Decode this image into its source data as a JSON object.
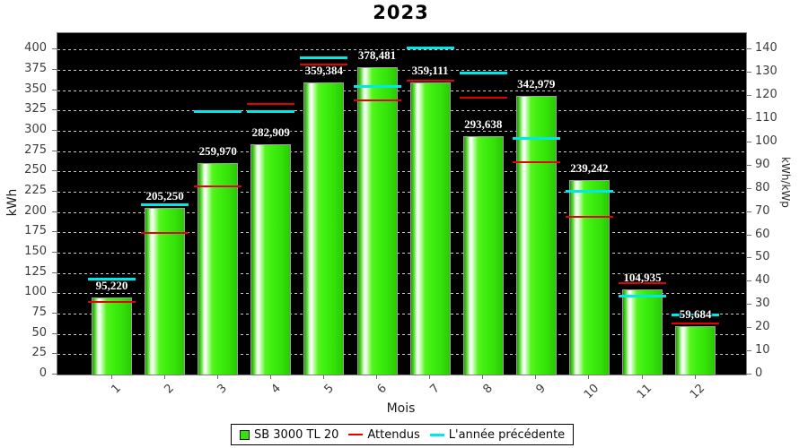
{
  "chart_data": {
    "type": "bar",
    "title": "2023",
    "xlabel": "Mois",
    "ylabel": "kWh",
    "ylabel_right": "kWh/kWp",
    "plot_background": "#000000",
    "grid": "horizontal dashed light-gray lines at left-axis ticks",
    "legend_position": "bottom-center",
    "categories": [
      "1",
      "2",
      "3",
      "4",
      "5",
      "6",
      "7",
      "8",
      "9",
      "10",
      "11",
      "12"
    ],
    "left_axis": {
      "min": 0,
      "max": 420,
      "ticks": [
        0,
        25,
        50,
        75,
        100,
        125,
        150,
        175,
        200,
        225,
        250,
        275,
        300,
        325,
        350,
        375,
        400
      ]
    },
    "right_axis": {
      "min": 0,
      "max": 147,
      "ticks": [
        0,
        10,
        20,
        30,
        40,
        50,
        60,
        70,
        80,
        90,
        100,
        110,
        120,
        130,
        140
      ]
    },
    "series": [
      {
        "name": "SB 3000 TL 20",
        "kind": "bar",
        "color": "#35e30a",
        "values": [
          95.22,
          205.25,
          259.97,
          282.909,
          359.384,
          378.481,
          359.111,
          293.638,
          342.979,
          239.242,
          104.935,
          59.684
        ],
        "value_labels": [
          "95,220",
          "205,250",
          "259,970",
          "282,909",
          "359,384",
          "378,481",
          "359,111",
          "293,638",
          "342,979",
          "239,242",
          "104,935",
          "59,684"
        ]
      },
      {
        "name": "Attendus",
        "kind": "horizontal-dash-marker",
        "color": "#e60000",
        "values": [
          89,
          174,
          231,
          333,
          381,
          337,
          362,
          341,
          261,
          194,
          112,
          63
        ]
      },
      {
        "name": "L'année précédente",
        "kind": "horizontal-dash-marker",
        "color": "#00e9e9",
        "values": [
          117,
          209,
          324,
          324,
          390,
          354,
          402,
          371,
          291,
          225,
          96,
          73
        ]
      }
    ]
  }
}
